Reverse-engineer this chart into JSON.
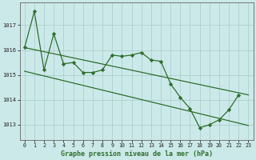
{
  "title": "Graphe pression niveau de la mer (hPa)",
  "background_color": "#cce9e9",
  "line_color": "#2d6e2d",
  "xlim": [
    -0.5,
    23.5
  ],
  "ylim": [
    1012.4,
    1017.9
  ],
  "yticks": [
    1013,
    1014,
    1015,
    1016,
    1017
  ],
  "xticks": [
    0,
    1,
    2,
    3,
    4,
    5,
    6,
    7,
    8,
    9,
    10,
    11,
    12,
    13,
    14,
    15,
    16,
    17,
    18,
    19,
    20,
    21,
    22,
    23
  ],
  "jagged": [
    1016.1,
    1017.55,
    1015.2,
    1016.65,
    1015.45,
    1015.5,
    1015.1,
    1015.1,
    1015.2,
    1015.8,
    1015.75,
    1015.8,
    1015.9,
    1015.6,
    1015.55,
    1014.65,
    1014.1,
    1013.65,
    1012.88,
    1013.0,
    1013.2,
    1013.6,
    1014.2
  ],
  "upper_line": [
    [
      0,
      1016.1
    ],
    [
      23,
      1014.2
    ]
  ],
  "lower_line": [
    [
      0,
      1015.15
    ],
    [
      23,
      1012.97
    ]
  ]
}
